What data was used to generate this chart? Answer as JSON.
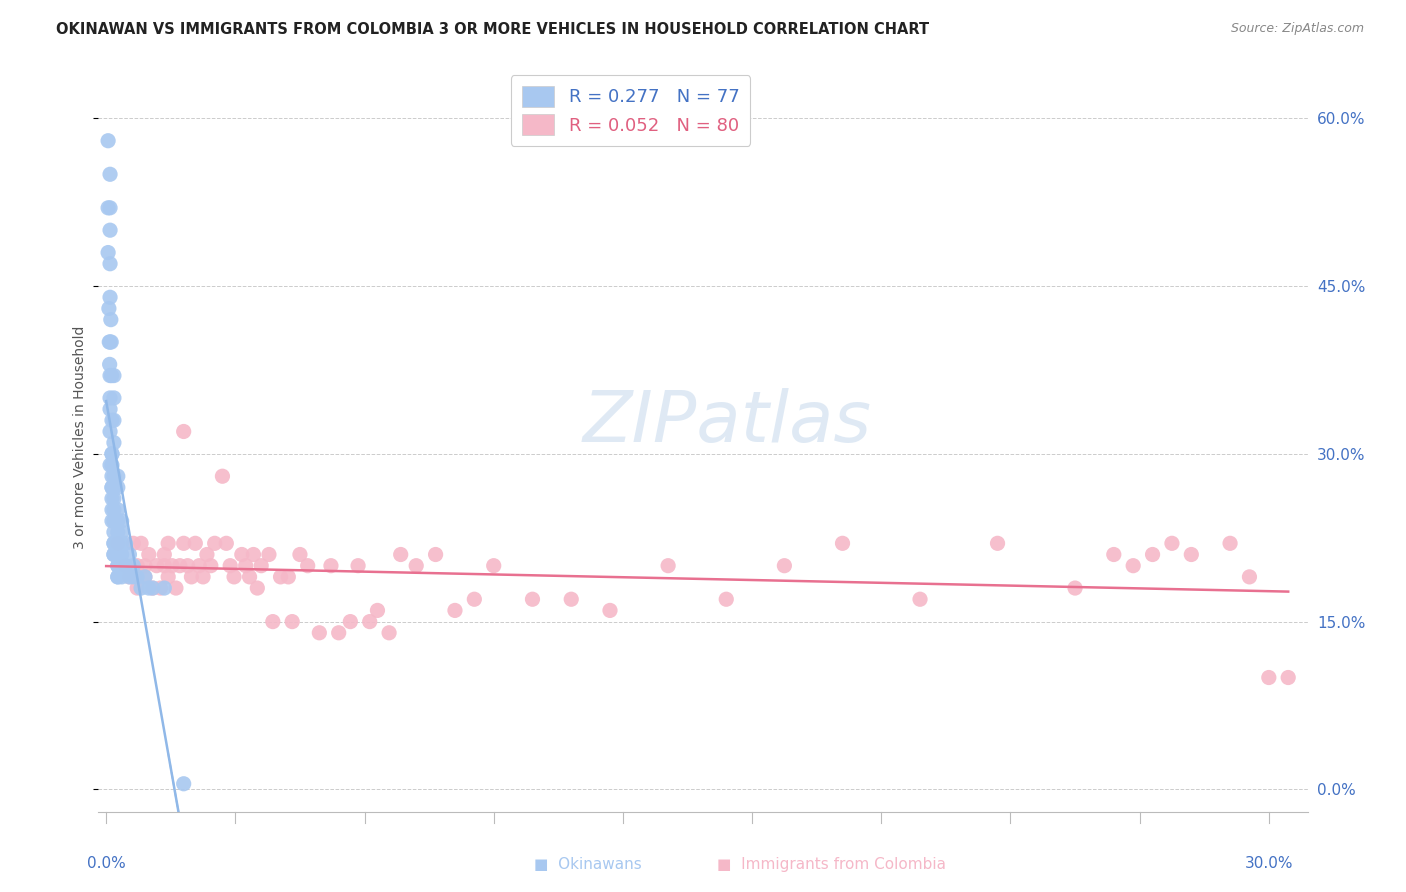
{
  "title": "OKINAWAN VS IMMIGRANTS FROM COLOMBIA 3 OR MORE VEHICLES IN HOUSEHOLD CORRELATION CHART",
  "source": "Source: ZipAtlas.com",
  "ylabel": "3 or more Vehicles in Household",
  "ylim": [
    -0.02,
    0.65
  ],
  "xlim": [
    -0.002,
    0.31
  ],
  "okinawan_color": "#A8C8F0",
  "colombia_color": "#F5B8C8",
  "trendline_okinawan_color": "#90B8E8",
  "trendline_colombia_color": "#E87090",
  "background_color": "#FFFFFF",
  "grid_color": "#CCCCCC",
  "watermark_text": "ZIPatlas",
  "legend_text1": "R = 0.277   N = 77",
  "legend_text2": "R = 0.052   N = 80",
  "yticks": [
    0.0,
    0.15,
    0.3,
    0.45,
    0.6
  ],
  "xtick_labels": [
    "0.0%",
    "30.0%"
  ],
  "xtick_vals": [
    0.0,
    0.3
  ],
  "okinawan_x": [
    0.0005,
    0.0005,
    0.0005,
    0.0007,
    0.0008,
    0.0009,
    0.001,
    0.001,
    0.001,
    0.001,
    0.001,
    0.001,
    0.001,
    0.001,
    0.001,
    0.001,
    0.001,
    0.0012,
    0.0013,
    0.0014,
    0.0015,
    0.0015,
    0.0015,
    0.0015,
    0.0015,
    0.0015,
    0.0015,
    0.0015,
    0.0015,
    0.0015,
    0.002,
    0.002,
    0.002,
    0.002,
    0.002,
    0.002,
    0.002,
    0.002,
    0.002,
    0.002,
    0.002,
    0.002,
    0.002,
    0.002,
    0.002,
    0.003,
    0.003,
    0.003,
    0.003,
    0.003,
    0.003,
    0.003,
    0.003,
    0.003,
    0.003,
    0.003,
    0.003,
    0.003,
    0.004,
    0.004,
    0.004,
    0.004,
    0.004,
    0.004,
    0.005,
    0.005,
    0.006,
    0.006,
    0.007,
    0.007,
    0.008,
    0.009,
    0.01,
    0.011,
    0.012,
    0.015,
    0.02
  ],
  "okinawan_y": [
    0.58,
    0.52,
    0.48,
    0.43,
    0.4,
    0.38,
    0.55,
    0.52,
    0.5,
    0.47,
    0.44,
    0.4,
    0.37,
    0.35,
    0.34,
    0.32,
    0.29,
    0.42,
    0.4,
    0.37,
    0.33,
    0.3,
    0.3,
    0.29,
    0.28,
    0.27,
    0.27,
    0.26,
    0.25,
    0.24,
    0.37,
    0.35,
    0.33,
    0.31,
    0.28,
    0.27,
    0.27,
    0.26,
    0.25,
    0.24,
    0.23,
    0.22,
    0.22,
    0.21,
    0.21,
    0.28,
    0.27,
    0.25,
    0.24,
    0.23,
    0.22,
    0.22,
    0.21,
    0.21,
    0.2,
    0.2,
    0.19,
    0.19,
    0.24,
    0.23,
    0.22,
    0.21,
    0.2,
    0.19,
    0.22,
    0.2,
    0.21,
    0.19,
    0.2,
    0.19,
    0.19,
    0.18,
    0.19,
    0.18,
    0.18,
    0.18,
    0.005
  ],
  "colombia_x": [
    0.003,
    0.005,
    0.006,
    0.007,
    0.008,
    0.008,
    0.009,
    0.01,
    0.01,
    0.011,
    0.012,
    0.013,
    0.014,
    0.015,
    0.015,
    0.016,
    0.016,
    0.017,
    0.018,
    0.019,
    0.02,
    0.02,
    0.021,
    0.022,
    0.023,
    0.024,
    0.025,
    0.026,
    0.027,
    0.028,
    0.03,
    0.031,
    0.032,
    0.033,
    0.035,
    0.036,
    0.037,
    0.038,
    0.039,
    0.04,
    0.042,
    0.043,
    0.045,
    0.047,
    0.048,
    0.05,
    0.052,
    0.055,
    0.058,
    0.06,
    0.063,
    0.065,
    0.068,
    0.07,
    0.073,
    0.076,
    0.08,
    0.085,
    0.09,
    0.095,
    0.1,
    0.11,
    0.12,
    0.13,
    0.145,
    0.16,
    0.175,
    0.19,
    0.21,
    0.23,
    0.25,
    0.26,
    0.265,
    0.27,
    0.275,
    0.28,
    0.29,
    0.295,
    0.3,
    0.305
  ],
  "colombia_y": [
    0.22,
    0.2,
    0.19,
    0.22,
    0.18,
    0.2,
    0.22,
    0.2,
    0.19,
    0.21,
    0.18,
    0.2,
    0.18,
    0.2,
    0.21,
    0.19,
    0.22,
    0.2,
    0.18,
    0.2,
    0.32,
    0.22,
    0.2,
    0.19,
    0.22,
    0.2,
    0.19,
    0.21,
    0.2,
    0.22,
    0.28,
    0.22,
    0.2,
    0.19,
    0.21,
    0.2,
    0.19,
    0.21,
    0.18,
    0.2,
    0.21,
    0.15,
    0.19,
    0.19,
    0.15,
    0.21,
    0.2,
    0.14,
    0.2,
    0.14,
    0.15,
    0.2,
    0.15,
    0.16,
    0.14,
    0.21,
    0.2,
    0.21,
    0.16,
    0.17,
    0.2,
    0.17,
    0.17,
    0.16,
    0.2,
    0.17,
    0.2,
    0.22,
    0.17,
    0.22,
    0.18,
    0.21,
    0.2,
    0.21,
    0.22,
    0.21,
    0.22,
    0.19,
    0.1,
    0.1
  ]
}
